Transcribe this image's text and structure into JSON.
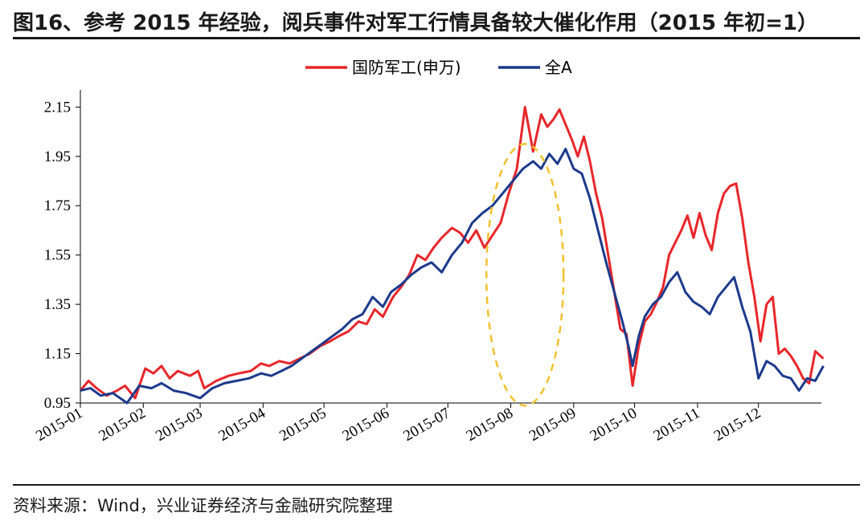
{
  "title": "图16、参考 2015 年经验，阅兵事件对军工行情具备较大催化作用（2015 年初=1）",
  "source": "资料来源：Wind，兴业证券经济与金融研究院整理",
  "colors": {
    "series1": "#e8262a",
    "series2": "#1c3a8c",
    "annotation": "#f2c12e"
  },
  "chart_data": {
    "type": "line",
    "ylim": [
      0.95,
      2.2
    ],
    "yticks": [
      "0.95",
      "1.15",
      "1.35",
      "1.55",
      "1.75",
      "1.95",
      "2.15"
    ],
    "xticks": [
      "2015-01",
      "2015-02",
      "2015-03",
      "2015-04",
      "2015-05",
      "2015-06",
      "2015-07",
      "2015-08",
      "2015-09",
      "2015-10",
      "2015-11",
      "2015-12"
    ],
    "legend_position": "top-center",
    "annotation": {
      "type": "dashed-ellipse",
      "around": "2015-08"
    },
    "series": [
      {
        "name": "国防军工(申万)",
        "color": "#e8262a",
        "points": [
          [
            "2015-01-01",
            1.0
          ],
          [
            "2015-01-05",
            1.04
          ],
          [
            "2015-01-09",
            1.01
          ],
          [
            "2015-01-14",
            0.98
          ],
          [
            "2015-01-19",
            1.0
          ],
          [
            "2015-01-23",
            1.02
          ],
          [
            "2015-01-28",
            0.97
          ],
          [
            "2015-02-02",
            1.09
          ],
          [
            "2015-02-06",
            1.07
          ],
          [
            "2015-02-10",
            1.1
          ],
          [
            "2015-02-14",
            1.05
          ],
          [
            "2015-02-18",
            1.08
          ],
          [
            "2015-02-24",
            1.06
          ],
          [
            "2015-02-28",
            1.08
          ],
          [
            "2015-03-03",
            1.01
          ],
          [
            "2015-03-09",
            1.04
          ],
          [
            "2015-03-15",
            1.06
          ],
          [
            "2015-03-20",
            1.07
          ],
          [
            "2015-03-26",
            1.08
          ],
          [
            "2015-03-31",
            1.11
          ],
          [
            "2015-04-04",
            1.1
          ],
          [
            "2015-04-09",
            1.12
          ],
          [
            "2015-04-14",
            1.11
          ],
          [
            "2015-04-19",
            1.13
          ],
          [
            "2015-04-24",
            1.15
          ],
          [
            "2015-04-29",
            1.18
          ],
          [
            "2015-05-04",
            1.2
          ],
          [
            "2015-05-08",
            1.22
          ],
          [
            "2015-05-13",
            1.24
          ],
          [
            "2015-05-18",
            1.28
          ],
          [
            "2015-05-22",
            1.27
          ],
          [
            "2015-05-26",
            1.33
          ],
          [
            "2015-05-30",
            1.3
          ],
          [
            "2015-06-04",
            1.38
          ],
          [
            "2015-06-08",
            1.42
          ],
          [
            "2015-06-12",
            1.47
          ],
          [
            "2015-06-16",
            1.55
          ],
          [
            "2015-06-20",
            1.53
          ],
          [
            "2015-06-24",
            1.58
          ],
          [
            "2015-06-28",
            1.62
          ],
          [
            "2015-07-03",
            1.66
          ],
          [
            "2015-07-07",
            1.64
          ],
          [
            "2015-07-11",
            1.6
          ],
          [
            "2015-07-15",
            1.65
          ],
          [
            "2015-07-19",
            1.58
          ],
          [
            "2015-07-23",
            1.63
          ],
          [
            "2015-07-27",
            1.68
          ],
          [
            "2015-07-31",
            1.8
          ],
          [
            "2015-08-04",
            1.9
          ],
          [
            "2015-08-08",
            2.15
          ],
          [
            "2015-08-12",
            1.97
          ],
          [
            "2015-08-16",
            2.12
          ],
          [
            "2015-08-19",
            2.07
          ],
          [
            "2015-08-22",
            2.1
          ],
          [
            "2015-08-25",
            2.14
          ],
          [
            "2015-08-28",
            2.08
          ],
          [
            "2015-08-31",
            2.02
          ],
          [
            "2015-09-03",
            1.95
          ],
          [
            "2015-09-06",
            2.03
          ],
          [
            "2015-09-09",
            1.93
          ],
          [
            "2015-09-12",
            1.8
          ],
          [
            "2015-09-15",
            1.7
          ],
          [
            "2015-09-18",
            1.55
          ],
          [
            "2015-09-21",
            1.4
          ],
          [
            "2015-09-24",
            1.25
          ],
          [
            "2015-09-27",
            1.23
          ],
          [
            "2015-09-30",
            1.02
          ],
          [
            "2015-10-03",
            1.18
          ],
          [
            "2015-10-06",
            1.28
          ],
          [
            "2015-10-09",
            1.31
          ],
          [
            "2015-10-12",
            1.36
          ],
          [
            "2015-10-15",
            1.42
          ],
          [
            "2015-10-18",
            1.55
          ],
          [
            "2015-10-21",
            1.6
          ],
          [
            "2015-10-24",
            1.65
          ],
          [
            "2015-10-27",
            1.71
          ],
          [
            "2015-10-30",
            1.62
          ],
          [
            "2015-11-02",
            1.72
          ],
          [
            "2015-11-05",
            1.63
          ],
          [
            "2015-11-08",
            1.57
          ],
          [
            "2015-11-11",
            1.72
          ],
          [
            "2015-11-14",
            1.8
          ],
          [
            "2015-11-17",
            1.83
          ],
          [
            "2015-11-20",
            1.84
          ],
          [
            "2015-11-23",
            1.7
          ],
          [
            "2015-11-26",
            1.52
          ],
          [
            "2015-11-29",
            1.38
          ],
          [
            "2015-12-02",
            1.2
          ],
          [
            "2015-12-05",
            1.35
          ],
          [
            "2015-12-08",
            1.38
          ],
          [
            "2015-12-11",
            1.15
          ],
          [
            "2015-12-14",
            1.17
          ],
          [
            "2015-12-17",
            1.14
          ],
          [
            "2015-12-20",
            1.1
          ],
          [
            "2015-12-23",
            1.05
          ],
          [
            "2015-12-26",
            1.03
          ],
          [
            "2015-12-29",
            1.16
          ],
          [
            "2016-01-02",
            1.13
          ]
        ]
      },
      {
        "name": "全A",
        "color": "#1c3a8c",
        "points": [
          [
            "2015-01-01",
            1.0
          ],
          [
            "2015-01-06",
            1.01
          ],
          [
            "2015-01-11",
            0.98
          ],
          [
            "2015-01-17",
            0.99
          ],
          [
            "2015-01-24",
            0.95
          ],
          [
            "2015-01-30",
            1.02
          ],
          [
            "2015-02-05",
            1.01
          ],
          [
            "2015-02-10",
            1.03
          ],
          [
            "2015-02-16",
            1.0
          ],
          [
            "2015-02-22",
            0.99
          ],
          [
            "2015-03-01",
            0.97
          ],
          [
            "2015-03-07",
            1.01
          ],
          [
            "2015-03-13",
            1.03
          ],
          [
            "2015-03-19",
            1.04
          ],
          [
            "2015-03-25",
            1.05
          ],
          [
            "2015-03-31",
            1.07
          ],
          [
            "2015-04-05",
            1.06
          ],
          [
            "2015-04-10",
            1.08
          ],
          [
            "2015-04-15",
            1.1
          ],
          [
            "2015-04-20",
            1.13
          ],
          [
            "2015-04-25",
            1.16
          ],
          [
            "2015-04-30",
            1.19
          ],
          [
            "2015-05-05",
            1.22
          ],
          [
            "2015-05-10",
            1.25
          ],
          [
            "2015-05-15",
            1.29
          ],
          [
            "2015-05-20",
            1.31
          ],
          [
            "2015-05-25",
            1.38
          ],
          [
            "2015-05-30",
            1.34
          ],
          [
            "2015-06-03",
            1.4
          ],
          [
            "2015-06-08",
            1.43
          ],
          [
            "2015-06-13",
            1.47
          ],
          [
            "2015-06-18",
            1.5
          ],
          [
            "2015-06-23",
            1.52
          ],
          [
            "2015-06-28",
            1.48
          ],
          [
            "2015-07-03",
            1.55
          ],
          [
            "2015-07-08",
            1.6
          ],
          [
            "2015-07-13",
            1.68
          ],
          [
            "2015-07-18",
            1.72
          ],
          [
            "2015-07-23",
            1.75
          ],
          [
            "2015-07-28",
            1.8
          ],
          [
            "2015-08-02",
            1.85
          ],
          [
            "2015-08-07",
            1.9
          ],
          [
            "2015-08-12",
            1.93
          ],
          [
            "2015-08-16",
            1.9
          ],
          [
            "2015-08-20",
            1.96
          ],
          [
            "2015-08-24",
            1.92
          ],
          [
            "2015-08-28",
            1.98
          ],
          [
            "2015-09-01",
            1.9
          ],
          [
            "2015-09-05",
            1.88
          ],
          [
            "2015-09-09",
            1.78
          ],
          [
            "2015-09-13",
            1.65
          ],
          [
            "2015-09-17",
            1.52
          ],
          [
            "2015-09-21",
            1.4
          ],
          [
            "2015-09-25",
            1.28
          ],
          [
            "2015-09-28",
            1.18
          ],
          [
            "2015-09-30",
            1.1
          ],
          [
            "2015-10-03",
            1.22
          ],
          [
            "2015-10-06",
            1.3
          ],
          [
            "2015-10-10",
            1.35
          ],
          [
            "2015-10-14",
            1.38
          ],
          [
            "2015-10-18",
            1.44
          ],
          [
            "2015-10-22",
            1.48
          ],
          [
            "2015-10-26",
            1.4
          ],
          [
            "2015-10-30",
            1.36
          ],
          [
            "2015-11-03",
            1.34
          ],
          [
            "2015-11-07",
            1.31
          ],
          [
            "2015-11-11",
            1.38
          ],
          [
            "2015-11-15",
            1.42
          ],
          [
            "2015-11-19",
            1.46
          ],
          [
            "2015-11-23",
            1.34
          ],
          [
            "2015-11-27",
            1.24
          ],
          [
            "2015-12-01",
            1.05
          ],
          [
            "2015-12-05",
            1.12
          ],
          [
            "2015-12-09",
            1.1
          ],
          [
            "2015-12-13",
            1.06
          ],
          [
            "2015-12-17",
            1.05
          ],
          [
            "2015-12-21",
            1.0
          ],
          [
            "2015-12-25",
            1.05
          ],
          [
            "2015-12-29",
            1.04
          ],
          [
            "2016-01-02",
            1.1
          ]
        ]
      }
    ]
  }
}
